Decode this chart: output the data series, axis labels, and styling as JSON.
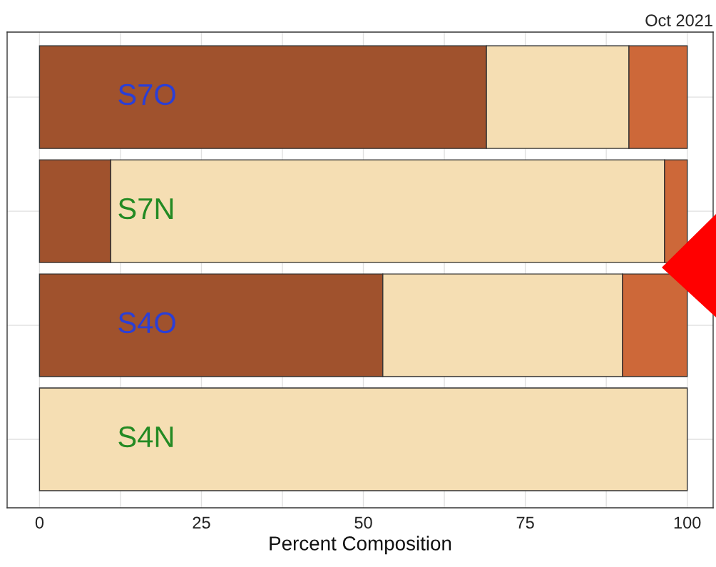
{
  "chart_data": {
    "type": "bar",
    "orientation": "horizontal",
    "stacked": true,
    "title": "Oct 2021",
    "xlabel": "Percent Composition",
    "categories": [
      "S7O",
      "S7N",
      "S4O",
      "S4N"
    ],
    "series": [
      {
        "color": "#a0522d",
        "values": [
          69,
          11,
          53,
          null
        ]
      },
      {
        "color": "#f5deb3",
        "values": [
          22,
          85.5,
          37,
          100
        ]
      },
      {
        "color": "#cd6839",
        "values": [
          9,
          3.5,
          10,
          null
        ]
      }
    ],
    "xlim": [
      -5,
      104
    ],
    "xticks": [
      0,
      25,
      50,
      75,
      100
    ],
    "grid": true,
    "tick_labels": "x",
    "legend": false
  }
}
